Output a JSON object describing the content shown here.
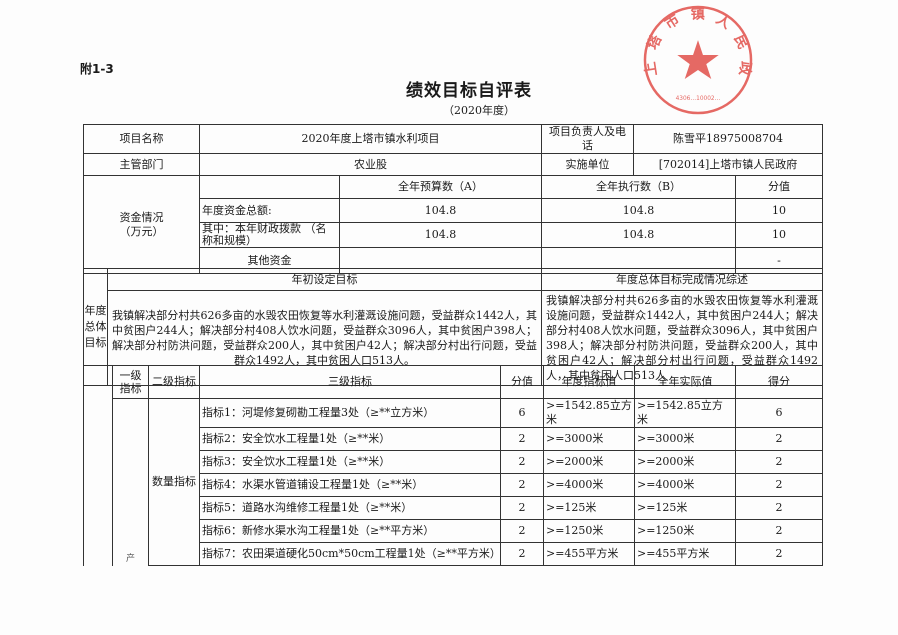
{
  "attachment_label": "附1-3",
  "title": "绩效目标自评表",
  "subtitle": "（2020年度）",
  "stamp": {
    "text": "上塔市镇人民政府",
    "number": "4306…10002…",
    "color": "#e0453f"
  },
  "basic": {
    "project_name_label": "项目名称",
    "project_name": "2020年度上塔市镇水利项目",
    "manager_label": "项目负责人及电话",
    "manager": "陈雪平18975008704",
    "dept_label": "主管部门",
    "dept": "农业股",
    "unit_label": "实施单位",
    "unit": "[702014]上塔市镇人民政府"
  },
  "funds": {
    "label": "资金情况\n（万元）",
    "label_line1": "资金情况",
    "label_line2": "（万元）",
    "headers": {
      "budget": "全年预算数（A）",
      "actual": "全年执行数（B）",
      "score": "分值"
    },
    "rows": [
      {
        "name": "年度资金总额:",
        "budget": "104.8",
        "actual": "104.8",
        "score": "10"
      },
      {
        "name": "其中：本年财政拨款  （名称和规模）",
        "budget": "104.8",
        "actual": "104.8",
        "score": "10"
      },
      {
        "name": "其他资金",
        "budget": "",
        "actual": "",
        "score": "-"
      }
    ]
  },
  "goals": {
    "label": "年度总体目标",
    "initial_header": "年初设定目标",
    "summary_header": "年度总体目标完成情况综述",
    "initial_text": "我镇解决部分村共626多亩的水毁农田恢复等水利灌溉设施问题，受益群众1442人，其中贫困户244人；解决部分村408人饮水问题，受益群众3096人，其中贫困户398人；解决部分村防洪问题，受益群众200人，其中贫困户42人；解决部分村出行问题，受益群众1492人，其中贫困人口513人。",
    "summary_text": "我镇解决部分村共626多亩的水毁农田恢复等水利灌溉设施问题，受益群众1442人，其中贫困户244人；解决部分村408人饮水问题，受益群众3096人，其中贫困户398人；解决部分村防洪问题，受益群众200人，其中贫困户42人；解决部分村出行问题，受益群众1492人，其中贫困人口513人"
  },
  "indicators": {
    "headers": {
      "level1": "一级指标",
      "level2": "二级指标",
      "level3": "三级指标",
      "score": "分值",
      "target": "年度指标值",
      "actual": "全年实际值",
      "got": "得分"
    },
    "level1_fragment": "产",
    "level2": "数量指标",
    "rows": [
      {
        "name": "指标1：河堤修复砌勘工程量3处（≥**立方米）",
        "score": "6",
        "target": ">=1542.85立方米",
        "actual": ">=1542.85立方米",
        "got": "6"
      },
      {
        "name": "指标2：安全饮水工程量1处（≥**米）",
        "score": "2",
        "target": ">=3000米",
        "actual": ">=3000米",
        "got": "2"
      },
      {
        "name": "指标3：安全饮水工程量1处（≥**米）",
        "score": "2",
        "target": ">=2000米",
        "actual": ">=2000米",
        "got": "2"
      },
      {
        "name": "指标4：水渠水管道铺设工程量1处（≥**米）",
        "score": "2",
        "target": ">=4000米",
        "actual": ">=4000米",
        "got": "2"
      },
      {
        "name": "指标5：道路水沟维修工程量1处（≥**米）",
        "score": "2",
        "target": ">=125米",
        "actual": ">=125米",
        "got": "2"
      },
      {
        "name": "指标6：新修水渠水沟工程量1处（≥**平方米）",
        "score": "2",
        "target": ">=1250米",
        "actual": ">=1250米",
        "got": "2"
      },
      {
        "name": "指标7：农田渠道硬化50cm*50cm工程量1处（≥**平方米）",
        "score": "2",
        "target": ">=455平方米",
        "actual": ">=455平方米",
        "got": "2"
      }
    ]
  }
}
